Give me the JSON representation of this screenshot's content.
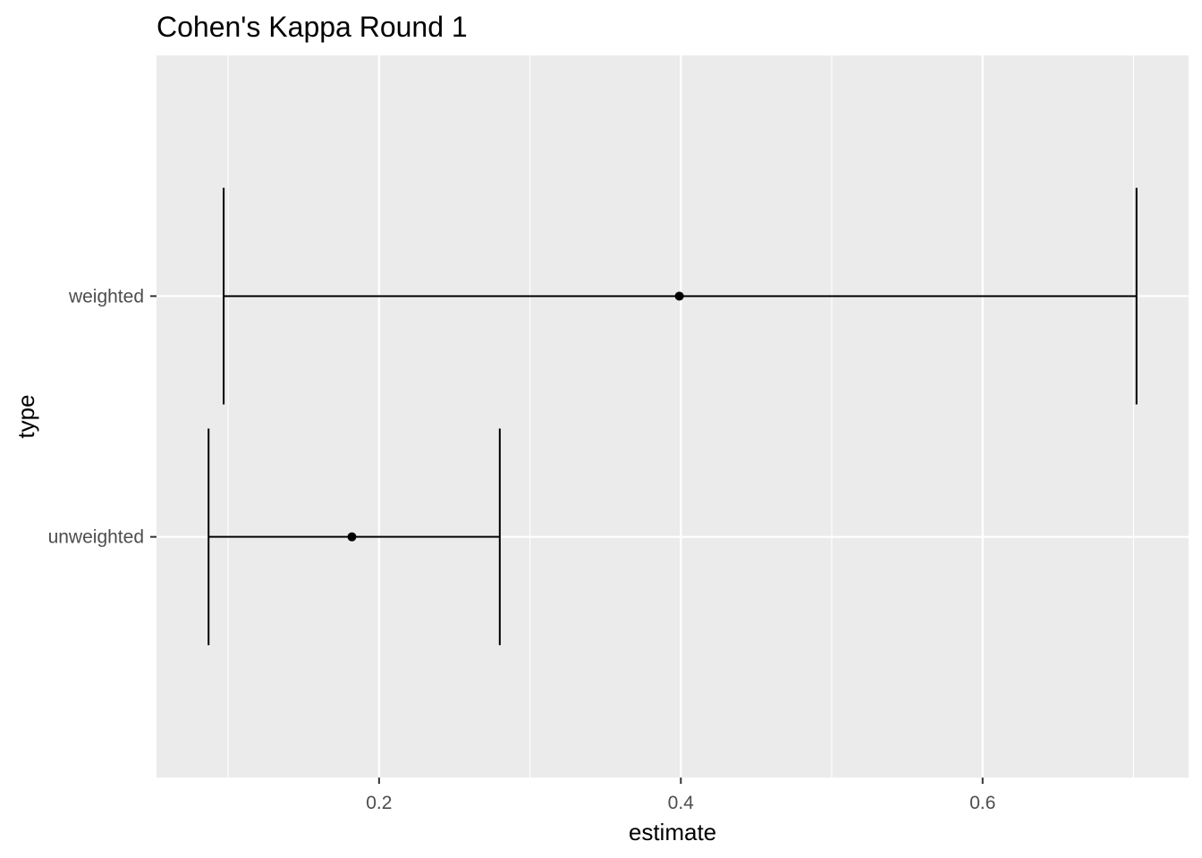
{
  "chart_data": {
    "type": "errorbar",
    "title": "Cohen's Kappa Round 1",
    "xlabel": "estimate",
    "ylabel": "type",
    "categories": [
      "unweighted",
      "weighted"
    ],
    "points": [
      {
        "type": "unweighted",
        "estimate": 0.182,
        "lower": 0.087,
        "upper": 0.28
      },
      {
        "type": "weighted",
        "estimate": 0.399,
        "lower": 0.097,
        "upper": 0.702
      }
    ],
    "xlim": [
      0.0525,
      0.7365
    ],
    "x_major_ticks": [
      0.2,
      0.4,
      0.6
    ],
    "x_tick_labels": [
      "0.2",
      "0.4",
      "0.6"
    ],
    "x_minor_ticks": [
      0.1,
      0.3,
      0.5,
      0.7
    ],
    "grid": true,
    "colors": {
      "panel_background": "#ebebeb",
      "gridline": "#ffffff",
      "series": "#000000",
      "tick_label": "#4d4d4d",
      "tick_mark": "#333333"
    }
  }
}
